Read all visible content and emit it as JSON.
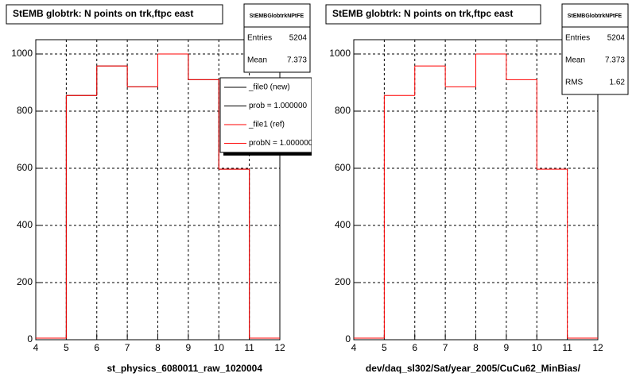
{
  "chart_data": [
    {
      "type": "histogram",
      "title": "StEMB globtrk: N points on trk,ftpc east",
      "xlabel": "st_physics_6080011_raw_1020004",
      "bins": [
        4,
        5,
        6,
        7,
        8,
        9,
        10,
        11,
        12
      ],
      "series": [
        {
          "color": "#000000",
          "values": [
            0,
            855,
            958,
            885,
            1000,
            910,
            597,
            0
          ]
        },
        {
          "color": "#ff0000",
          "values": [
            0,
            855,
            958,
            885,
            1000,
            910,
            597,
            0
          ]
        }
      ],
      "xlim": [
        4,
        12
      ],
      "ylim": [
        0,
        1050
      ],
      "xticks": [
        4,
        5,
        6,
        7,
        8,
        9,
        10,
        11,
        12
      ],
      "yticks": [
        0,
        200,
        400,
        600,
        800,
        1000
      ],
      "grid": true,
      "stats": {
        "name": "StEMBGlobtrkNPtFE",
        "rows": [
          {
            "label": "Entries",
            "value": 5204
          },
          {
            "label": "Mean",
            "value": 7.373
          }
        ]
      },
      "legend": [
        {
          "label": "_file0 (new)",
          "color": "#000000"
        },
        {
          "label": "prob = 1.000000",
          "color": "#000000"
        },
        {
          "label": "_file1 (ref)",
          "color": "#ff0000"
        },
        {
          "label": "probN = 1.000000",
          "color": "#ff0000"
        }
      ]
    },
    {
      "type": "histogram",
      "title": "StEMB globtrk: N points on trk,ftpc east",
      "xlabel": "dev/daq_sl302/Sat/year_2005/CuCu62_MinBias/",
      "bins": [
        4,
        5,
        6,
        7,
        8,
        9,
        10,
        11,
        12
      ],
      "series": [
        {
          "color": "#ff0000",
          "values": [
            0,
            855,
            958,
            885,
            1000,
            910,
            597,
            0
          ]
        }
      ],
      "xlim": [
        4,
        12
      ],
      "ylim": [
        0,
        1050
      ],
      "xticks": [
        4,
        5,
        6,
        7,
        8,
        9,
        10,
        11,
        12
      ],
      "yticks": [
        0,
        200,
        400,
        600,
        800,
        1000
      ],
      "grid": true,
      "stats": {
        "name": "StEMBGlobtrkNPtFE",
        "rows": [
          {
            "label": "Entries",
            "value": 5204
          },
          {
            "label": "Mean",
            "value": 7.373
          },
          {
            "label": "RMS",
            "value": 1.62
          }
        ]
      }
    }
  ]
}
